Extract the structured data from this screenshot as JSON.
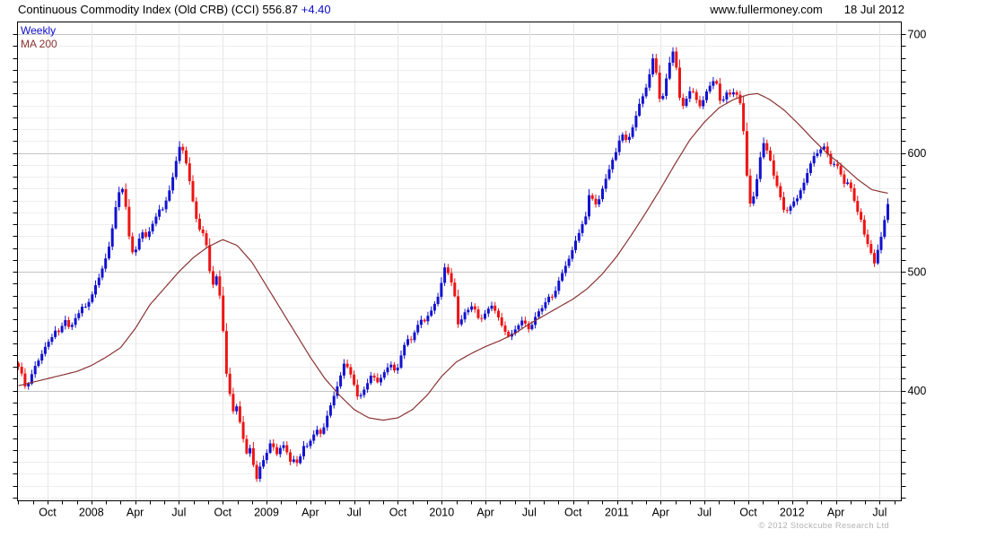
{
  "header": {
    "title_main": "Continuous Commodity Index (Old CRB) (CCI) 556.87",
    "title_change": "+4.40",
    "website": "www.fullermoney.com",
    "date": "18 Jul 2012"
  },
  "legend": {
    "weekly": "Weekly",
    "ma": "MA 200"
  },
  "footer": {
    "copyright": "© 2012 Stockcube Research Ltd"
  },
  "colors": {
    "up_candle": "#1212d0",
    "down_candle": "#ee1414",
    "ma_line": "#8b3232",
    "grid_minor": "#eeeeee",
    "grid_major": "#c4c4c4",
    "grid_vertical": "#e6e6e6",
    "frame": "#000000",
    "axis_text": "#000000",
    "change_text": "#0a0acc"
  },
  "chart_data": {
    "type": "candlestick",
    "title": "Continuous Commodity Index (Old CRB) (CCI)",
    "last_close": 556.87,
    "last_change": "+4.40",
    "as_of": "18 Jul 2012",
    "timeframe": "Weekly",
    "overlay": "MA 200",
    "y_axis": {
      "grid_min": 310,
      "grid_max": 700,
      "tick_step": 10,
      "label_step": 100,
      "labels": [
        700,
        600,
        500,
        400
      ],
      "value_min": 307,
      "value_max": 710
    },
    "x_axis": {
      "start": "2007-08-03",
      "end": "2012-07-18",
      "labels": [
        {
          "text": "Oct",
          "date": "2007-10-01"
        },
        {
          "text": "2008",
          "date": "2008-01-01"
        },
        {
          "text": "Apr",
          "date": "2008-04-01"
        },
        {
          "text": "Jul",
          "date": "2008-07-01"
        },
        {
          "text": "Oct",
          "date": "2008-10-01"
        },
        {
          "text": "2009",
          "date": "2009-01-01"
        },
        {
          "text": "Apr",
          "date": "2009-04-01"
        },
        {
          "text": "Jul",
          "date": "2009-07-01"
        },
        {
          "text": "Oct",
          "date": "2009-10-01"
        },
        {
          "text": "2010",
          "date": "2010-01-01"
        },
        {
          "text": "Apr",
          "date": "2010-04-01"
        },
        {
          "text": "Jul",
          "date": "2010-07-01"
        },
        {
          "text": "Oct",
          "date": "2010-10-01"
        },
        {
          "text": "2011",
          "date": "2011-01-01"
        },
        {
          "text": "Apr",
          "date": "2011-04-01"
        },
        {
          "text": "Jul",
          "date": "2011-07-01"
        },
        {
          "text": "Oct",
          "date": "2011-10-01"
        },
        {
          "text": "2012",
          "date": "2012-01-01"
        },
        {
          "text": "Apr",
          "date": "2012-04-01"
        },
        {
          "text": "Jul",
          "date": "2012-07-01"
        }
      ]
    },
    "price_close_anchors": [
      [
        "2007-08-03",
        420
      ],
      [
        "2007-08-10",
        412
      ],
      [
        "2007-08-17",
        400
      ],
      [
        "2007-08-24",
        408
      ],
      [
        "2007-08-31",
        416
      ],
      [
        "2007-09-07",
        422
      ],
      [
        "2007-09-14",
        426
      ],
      [
        "2007-09-21",
        432
      ],
      [
        "2007-09-28",
        438
      ],
      [
        "2007-10-05",
        442
      ],
      [
        "2007-10-12",
        446
      ],
      [
        "2007-10-19",
        452
      ],
      [
        "2007-10-26",
        448
      ],
      [
        "2007-11-02",
        456
      ],
      [
        "2007-11-09",
        460
      ],
      [
        "2007-11-16",
        452
      ],
      [
        "2007-11-23",
        456
      ],
      [
        "2007-11-30",
        462
      ],
      [
        "2007-12-07",
        466
      ],
      [
        "2007-12-14",
        472
      ],
      [
        "2007-12-21",
        470
      ],
      [
        "2007-12-28",
        476
      ],
      [
        "2008-01-04",
        482
      ],
      [
        "2008-01-11",
        490
      ],
      [
        "2008-01-18",
        496
      ],
      [
        "2008-01-25",
        504
      ],
      [
        "2008-02-01",
        512
      ],
      [
        "2008-02-08",
        522
      ],
      [
        "2008-02-15",
        538
      ],
      [
        "2008-02-22",
        556
      ],
      [
        "2008-02-29",
        568
      ],
      [
        "2008-03-07",
        570
      ],
      [
        "2008-03-14",
        548
      ],
      [
        "2008-03-21",
        522
      ],
      [
        "2008-03-28",
        514
      ],
      [
        "2008-04-04",
        520
      ],
      [
        "2008-04-11",
        530
      ],
      [
        "2008-04-18",
        534
      ],
      [
        "2008-04-25",
        528
      ],
      [
        "2008-05-02",
        536
      ],
      [
        "2008-05-09",
        542
      ],
      [
        "2008-05-16",
        548
      ],
      [
        "2008-05-23",
        554
      ],
      [
        "2008-05-30",
        552
      ],
      [
        "2008-06-06",
        562
      ],
      [
        "2008-06-13",
        570
      ],
      [
        "2008-06-20",
        582
      ],
      [
        "2008-06-27",
        596
      ],
      [
        "2008-07-04",
        608
      ],
      [
        "2008-07-11",
        600
      ],
      [
        "2008-07-18",
        588
      ],
      [
        "2008-07-25",
        572
      ],
      [
        "2008-08-01",
        556
      ],
      [
        "2008-08-08",
        542
      ],
      [
        "2008-08-15",
        534
      ],
      [
        "2008-08-22",
        532
      ],
      [
        "2008-08-29",
        520
      ],
      [
        "2008-09-05",
        498
      ],
      [
        "2008-09-12",
        488
      ],
      [
        "2008-09-19",
        497
      ],
      [
        "2008-09-26",
        478
      ],
      [
        "2008-10-03",
        445
      ],
      [
        "2008-10-10",
        408
      ],
      [
        "2008-10-17",
        395
      ],
      [
        "2008-10-24",
        380
      ],
      [
        "2008-10-31",
        388
      ],
      [
        "2008-11-07",
        372
      ],
      [
        "2008-11-14",
        358
      ],
      [
        "2008-11-21",
        346
      ],
      [
        "2008-11-28",
        352
      ],
      [
        "2008-12-05",
        335
      ],
      [
        "2008-12-12",
        324
      ],
      [
        "2008-12-19",
        338
      ],
      [
        "2008-12-26",
        342
      ],
      [
        "2009-01-02",
        348
      ],
      [
        "2009-01-09",
        356
      ],
      [
        "2009-01-16",
        352
      ],
      [
        "2009-01-23",
        346
      ],
      [
        "2009-01-30",
        352
      ],
      [
        "2009-02-06",
        354
      ],
      [
        "2009-02-13",
        348
      ],
      [
        "2009-02-20",
        340
      ],
      [
        "2009-02-27",
        342
      ],
      [
        "2009-03-06",
        338
      ],
      [
        "2009-03-13",
        348
      ],
      [
        "2009-03-20",
        356
      ],
      [
        "2009-03-27",
        352
      ],
      [
        "2009-04-03",
        360
      ],
      [
        "2009-04-10",
        364
      ],
      [
        "2009-04-17",
        368
      ],
      [
        "2009-04-24",
        362
      ],
      [
        "2009-05-01",
        372
      ],
      [
        "2009-05-08",
        382
      ],
      [
        "2009-05-15",
        390
      ],
      [
        "2009-05-22",
        398
      ],
      [
        "2009-05-29",
        406
      ],
      [
        "2009-06-05",
        415
      ],
      [
        "2009-06-12",
        425
      ],
      [
        "2009-06-19",
        418
      ],
      [
        "2009-06-26",
        412
      ],
      [
        "2009-07-03",
        402
      ],
      [
        "2009-07-10",
        392
      ],
      [
        "2009-07-17",
        398
      ],
      [
        "2009-07-24",
        402
      ],
      [
        "2009-07-31",
        408
      ],
      [
        "2009-08-07",
        414
      ],
      [
        "2009-08-14",
        410
      ],
      [
        "2009-08-21",
        406
      ],
      [
        "2009-08-28",
        412
      ],
      [
        "2009-09-04",
        416
      ],
      [
        "2009-09-11",
        420
      ],
      [
        "2009-09-18",
        422
      ],
      [
        "2009-09-25",
        416
      ],
      [
        "2009-10-02",
        420
      ],
      [
        "2009-10-09",
        432
      ],
      [
        "2009-10-16",
        440
      ],
      [
        "2009-10-23",
        444
      ],
      [
        "2009-10-30",
        442
      ],
      [
        "2009-11-06",
        450
      ],
      [
        "2009-11-13",
        456
      ],
      [
        "2009-11-20",
        460
      ],
      [
        "2009-11-27",
        458
      ],
      [
        "2009-12-04",
        464
      ],
      [
        "2009-12-11",
        468
      ],
      [
        "2009-12-18",
        474
      ],
      [
        "2009-12-25",
        480
      ],
      [
        "2010-01-01",
        492
      ],
      [
        "2010-01-08",
        505
      ],
      [
        "2010-01-15",
        498
      ],
      [
        "2010-01-22",
        490
      ],
      [
        "2010-01-29",
        478
      ],
      [
        "2010-02-05",
        455
      ],
      [
        "2010-02-12",
        460
      ],
      [
        "2010-02-19",
        466
      ],
      [
        "2010-02-26",
        468
      ],
      [
        "2010-03-05",
        472
      ],
      [
        "2010-03-12",
        466
      ],
      [
        "2010-03-19",
        458
      ],
      [
        "2010-03-26",
        462
      ],
      [
        "2010-04-02",
        466
      ],
      [
        "2010-04-09",
        470
      ],
      [
        "2010-04-16",
        472
      ],
      [
        "2010-04-23",
        465
      ],
      [
        "2010-04-30",
        460
      ],
      [
        "2010-05-07",
        452
      ],
      [
        "2010-05-14",
        448
      ],
      [
        "2010-05-21",
        444
      ],
      [
        "2010-05-28",
        450
      ],
      [
        "2010-06-04",
        452
      ],
      [
        "2010-06-11",
        456
      ],
      [
        "2010-06-18",
        460
      ],
      [
        "2010-06-25",
        455
      ],
      [
        "2010-07-02",
        450
      ],
      [
        "2010-07-09",
        458
      ],
      [
        "2010-07-16",
        464
      ],
      [
        "2010-07-23",
        468
      ],
      [
        "2010-07-30",
        470
      ],
      [
        "2010-08-06",
        476
      ],
      [
        "2010-08-13",
        480
      ],
      [
        "2010-08-20",
        478
      ],
      [
        "2010-08-27",
        486
      ],
      [
        "2010-09-03",
        494
      ],
      [
        "2010-09-10",
        500
      ],
      [
        "2010-09-17",
        506
      ],
      [
        "2010-09-24",
        512
      ],
      [
        "2010-10-01",
        520
      ],
      [
        "2010-10-08",
        528
      ],
      [
        "2010-10-15",
        534
      ],
      [
        "2010-10-22",
        542
      ],
      [
        "2010-10-29",
        548
      ],
      [
        "2010-11-05",
        568
      ],
      [
        "2010-11-12",
        560
      ],
      [
        "2010-11-19",
        556
      ],
      [
        "2010-11-26",
        562
      ],
      [
        "2010-12-03",
        572
      ],
      [
        "2010-12-10",
        580
      ],
      [
        "2010-12-17",
        588
      ],
      [
        "2010-12-24",
        596
      ],
      [
        "2010-12-31",
        602
      ],
      [
        "2011-01-07",
        612
      ],
      [
        "2011-01-14",
        616
      ],
      [
        "2011-01-21",
        610
      ],
      [
        "2011-01-28",
        614
      ],
      [
        "2011-02-04",
        622
      ],
      [
        "2011-02-11",
        632
      ],
      [
        "2011-02-18",
        642
      ],
      [
        "2011-02-25",
        648
      ],
      [
        "2011-03-04",
        658
      ],
      [
        "2011-03-11",
        672
      ],
      [
        "2011-03-18",
        685
      ],
      [
        "2011-03-25",
        655
      ],
      [
        "2011-04-01",
        640
      ],
      [
        "2011-04-08",
        652
      ],
      [
        "2011-04-15",
        668
      ],
      [
        "2011-04-22",
        680
      ],
      [
        "2011-04-29",
        688
      ],
      [
        "2011-05-06",
        662
      ],
      [
        "2011-05-13",
        636
      ],
      [
        "2011-05-20",
        642
      ],
      [
        "2011-05-27",
        648
      ],
      [
        "2011-06-03",
        654
      ],
      [
        "2011-06-10",
        650
      ],
      [
        "2011-06-17",
        642
      ],
      [
        "2011-06-24",
        638
      ],
      [
        "2011-07-01",
        648
      ],
      [
        "2011-07-08",
        654
      ],
      [
        "2011-07-15",
        658
      ],
      [
        "2011-07-22",
        662
      ],
      [
        "2011-07-29",
        656
      ],
      [
        "2011-08-05",
        638
      ],
      [
        "2011-08-12",
        648
      ],
      [
        "2011-08-19",
        652
      ],
      [
        "2011-08-26",
        648
      ],
      [
        "2011-09-02",
        652
      ],
      [
        "2011-09-09",
        648
      ],
      [
        "2011-09-16",
        640
      ],
      [
        "2011-09-23",
        612
      ],
      [
        "2011-09-30",
        572
      ],
      [
        "2011-10-07",
        552
      ],
      [
        "2011-10-14",
        568
      ],
      [
        "2011-10-21",
        582
      ],
      [
        "2011-10-28",
        602
      ],
      [
        "2011-11-04",
        610
      ],
      [
        "2011-11-11",
        600
      ],
      [
        "2011-11-18",
        592
      ],
      [
        "2011-11-25",
        578
      ],
      [
        "2011-12-02",
        570
      ],
      [
        "2011-12-09",
        560
      ],
      [
        "2011-12-16",
        549
      ],
      [
        "2011-12-23",
        552
      ],
      [
        "2011-12-30",
        556
      ],
      [
        "2012-01-06",
        560
      ],
      [
        "2012-01-13",
        562
      ],
      [
        "2012-01-20",
        570
      ],
      [
        "2012-01-27",
        576
      ],
      [
        "2012-02-03",
        584
      ],
      [
        "2012-02-10",
        592
      ],
      [
        "2012-02-17",
        598
      ],
      [
        "2012-02-24",
        600
      ],
      [
        "2012-03-02",
        604
      ],
      [
        "2012-03-09",
        606
      ],
      [
        "2012-03-16",
        596
      ],
      [
        "2012-03-23",
        588
      ],
      [
        "2012-03-30",
        592
      ],
      [
        "2012-04-06",
        588
      ],
      [
        "2012-04-13",
        580
      ],
      [
        "2012-04-20",
        572
      ],
      [
        "2012-04-27",
        576
      ],
      [
        "2012-05-04",
        568
      ],
      [
        "2012-05-11",
        556
      ],
      [
        "2012-05-18",
        548
      ],
      [
        "2012-05-25",
        542
      ],
      [
        "2012-06-01",
        528
      ],
      [
        "2012-06-08",
        522
      ],
      [
        "2012-06-15",
        514
      ],
      [
        "2012-06-22",
        505
      ],
      [
        "2012-06-29",
        522
      ],
      [
        "2012-07-06",
        532
      ],
      [
        "2012-07-13",
        548
      ],
      [
        "2012-07-18",
        556.87
      ]
    ],
    "ma200_anchors": [
      [
        "2007-08-01",
        404
      ],
      [
        "2007-09-01",
        407
      ],
      [
        "2007-10-01",
        410
      ],
      [
        "2007-11-01",
        413
      ],
      [
        "2007-12-01",
        416
      ],
      [
        "2008-01-01",
        421
      ],
      [
        "2008-02-01",
        428
      ],
      [
        "2008-03-01",
        436
      ],
      [
        "2008-04-01",
        452
      ],
      [
        "2008-05-01",
        472
      ],
      [
        "2008-06-01",
        486
      ],
      [
        "2008-07-01",
        500
      ],
      [
        "2008-08-01",
        512
      ],
      [
        "2008-09-01",
        521
      ],
      [
        "2008-10-01",
        527
      ],
      [
        "2008-11-01",
        522
      ],
      [
        "2008-12-01",
        508
      ],
      [
        "2009-01-01",
        488
      ],
      [
        "2009-02-01",
        468
      ],
      [
        "2009-03-01",
        448
      ],
      [
        "2009-04-01",
        428
      ],
      [
        "2009-05-01",
        410
      ],
      [
        "2009-06-01",
        396
      ],
      [
        "2009-07-01",
        384
      ],
      [
        "2009-08-01",
        377
      ],
      [
        "2009-09-01",
        375
      ],
      [
        "2009-10-01",
        377
      ],
      [
        "2009-11-01",
        384
      ],
      [
        "2009-12-01",
        396
      ],
      [
        "2010-01-01",
        412
      ],
      [
        "2010-02-01",
        424
      ],
      [
        "2010-03-01",
        431
      ],
      [
        "2010-04-01",
        437
      ],
      [
        "2010-05-01",
        442
      ],
      [
        "2010-06-01",
        448
      ],
      [
        "2010-07-01",
        456
      ],
      [
        "2010-08-01",
        463
      ],
      [
        "2010-09-01",
        470
      ],
      [
        "2010-10-01",
        477
      ],
      [
        "2010-11-01",
        486
      ],
      [
        "2010-12-01",
        498
      ],
      [
        "2011-01-01",
        513
      ],
      [
        "2011-02-01",
        531
      ],
      [
        "2011-03-01",
        550
      ],
      [
        "2011-04-01",
        570
      ],
      [
        "2011-05-01",
        591
      ],
      [
        "2011-06-01",
        611
      ],
      [
        "2011-07-01",
        626
      ],
      [
        "2011-08-01",
        638
      ],
      [
        "2011-09-01",
        645
      ],
      [
        "2011-10-01",
        649
      ],
      [
        "2011-10-20",
        650
      ],
      [
        "2011-11-15",
        645
      ],
      [
        "2011-12-15",
        636
      ],
      [
        "2012-01-15",
        624
      ],
      [
        "2012-02-15",
        611
      ],
      [
        "2012-03-15",
        599
      ],
      [
        "2012-04-15",
        589
      ],
      [
        "2012-05-15",
        578
      ],
      [
        "2012-06-15",
        569
      ],
      [
        "2012-07-18",
        566
      ]
    ]
  }
}
